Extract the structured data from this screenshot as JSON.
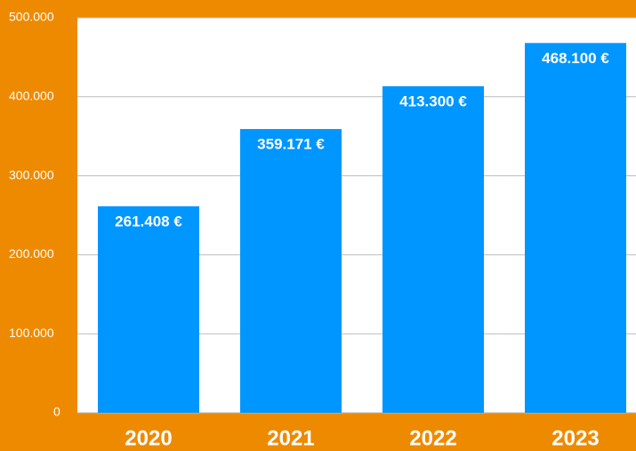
{
  "chart_data": {
    "type": "bar",
    "categories": [
      "2020",
      "2021",
      "2022",
      "2023"
    ],
    "values": [
      261408,
      359171,
      413300,
      468100
    ],
    "value_labels": [
      "261.408 €",
      "359.171 €",
      "413.300 €",
      "468.100 €"
    ],
    "color": "#0096ff",
    "ylim": [
      0,
      500000
    ],
    "yticks": [
      0,
      {
        "value": 100000,
        "label": "100.000"
      },
      {
        "value": 200000,
        "label": "200.000"
      },
      {
        "value": 300000,
        "label": "300.000"
      },
      {
        "value": 400000,
        "label": "400.000"
      },
      {
        "value": 500000,
        "label": "500.000"
      }
    ],
    "grid": true
  }
}
